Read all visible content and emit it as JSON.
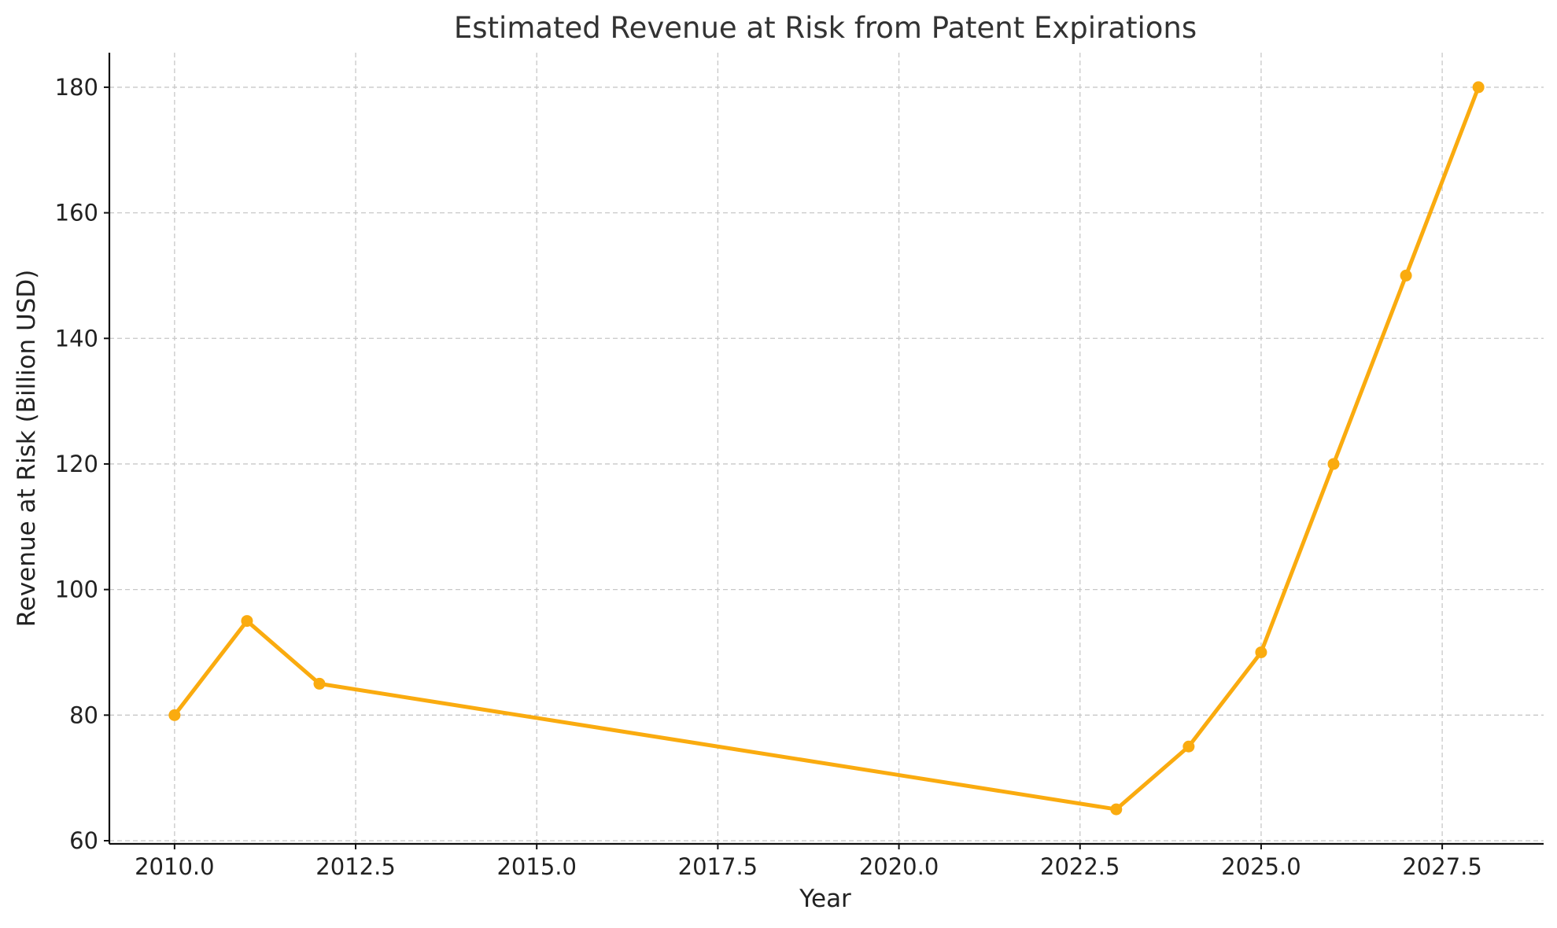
{
  "chart_data": {
    "type": "line",
    "title": "Estimated Revenue at Risk from Patent Expirations",
    "xlabel": "Year",
    "ylabel": "Revenue at Risk (Billion USD)",
    "x": [
      2010,
      2011,
      2012,
      2023,
      2024,
      2025,
      2026,
      2027,
      2028
    ],
    "series": [
      {
        "values": [
          80,
          95,
          85,
          65,
          75,
          90,
          120,
          150,
          180
        ]
      }
    ],
    "xlim": [
      2009.1,
      2028.9
    ],
    "ylim": [
      59.5,
      185.5
    ],
    "x_ticks": [
      2010.0,
      2012.5,
      2015.0,
      2017.5,
      2020.0,
      2022.5,
      2025.0,
      2027.5
    ],
    "x_tick_labels": [
      "2010.0",
      "2012.5",
      "2015.0",
      "2017.5",
      "2020.0",
      "2022.5",
      "2025.0",
      "2027.5"
    ],
    "y_ticks": [
      60,
      80,
      100,
      120,
      140,
      160,
      180
    ],
    "y_tick_labels": [
      "60",
      "80",
      "100",
      "120",
      "140",
      "160",
      "180"
    ],
    "grid": true,
    "line_color": "#FAAB0F",
    "marker": "circle"
  }
}
